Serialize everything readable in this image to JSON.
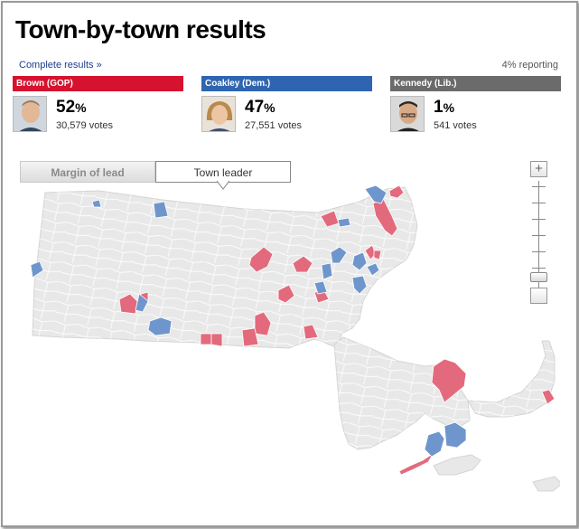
{
  "title": "Town-by-town results",
  "links": {
    "complete_results": "Complete results »"
  },
  "reporting": "4% reporting",
  "candidates": [
    {
      "label": "Brown (GOP)",
      "pct": "52",
      "votes": "30,579 votes",
      "color": "#d6122e"
    },
    {
      "label": "Coakley (Dem.)",
      "pct": "47",
      "votes": "27,551 votes",
      "color": "#2f65b0"
    },
    {
      "label": "Kennedy (Lib.)",
      "pct": "1",
      "votes": "541 votes",
      "color": "#6b6b6b"
    }
  ],
  "pct_symbol": "%",
  "tabs": [
    {
      "label": "Margin of lead",
      "active": false
    },
    {
      "label": "Town leader",
      "active": true
    }
  ],
  "zoom": {
    "in_symbol": "+",
    "level": 0.1
  },
  "map": {
    "base_color": "#e8e8e8",
    "border_color": "#ffffff",
    "gop_color": "#e36a7c",
    "dem_color": "#6f96cc"
  },
  "icons": {
    "zoom_in": "plus-icon",
    "zoom_out": "minus-icon",
    "tab_pointer": "caret-down-icon"
  }
}
